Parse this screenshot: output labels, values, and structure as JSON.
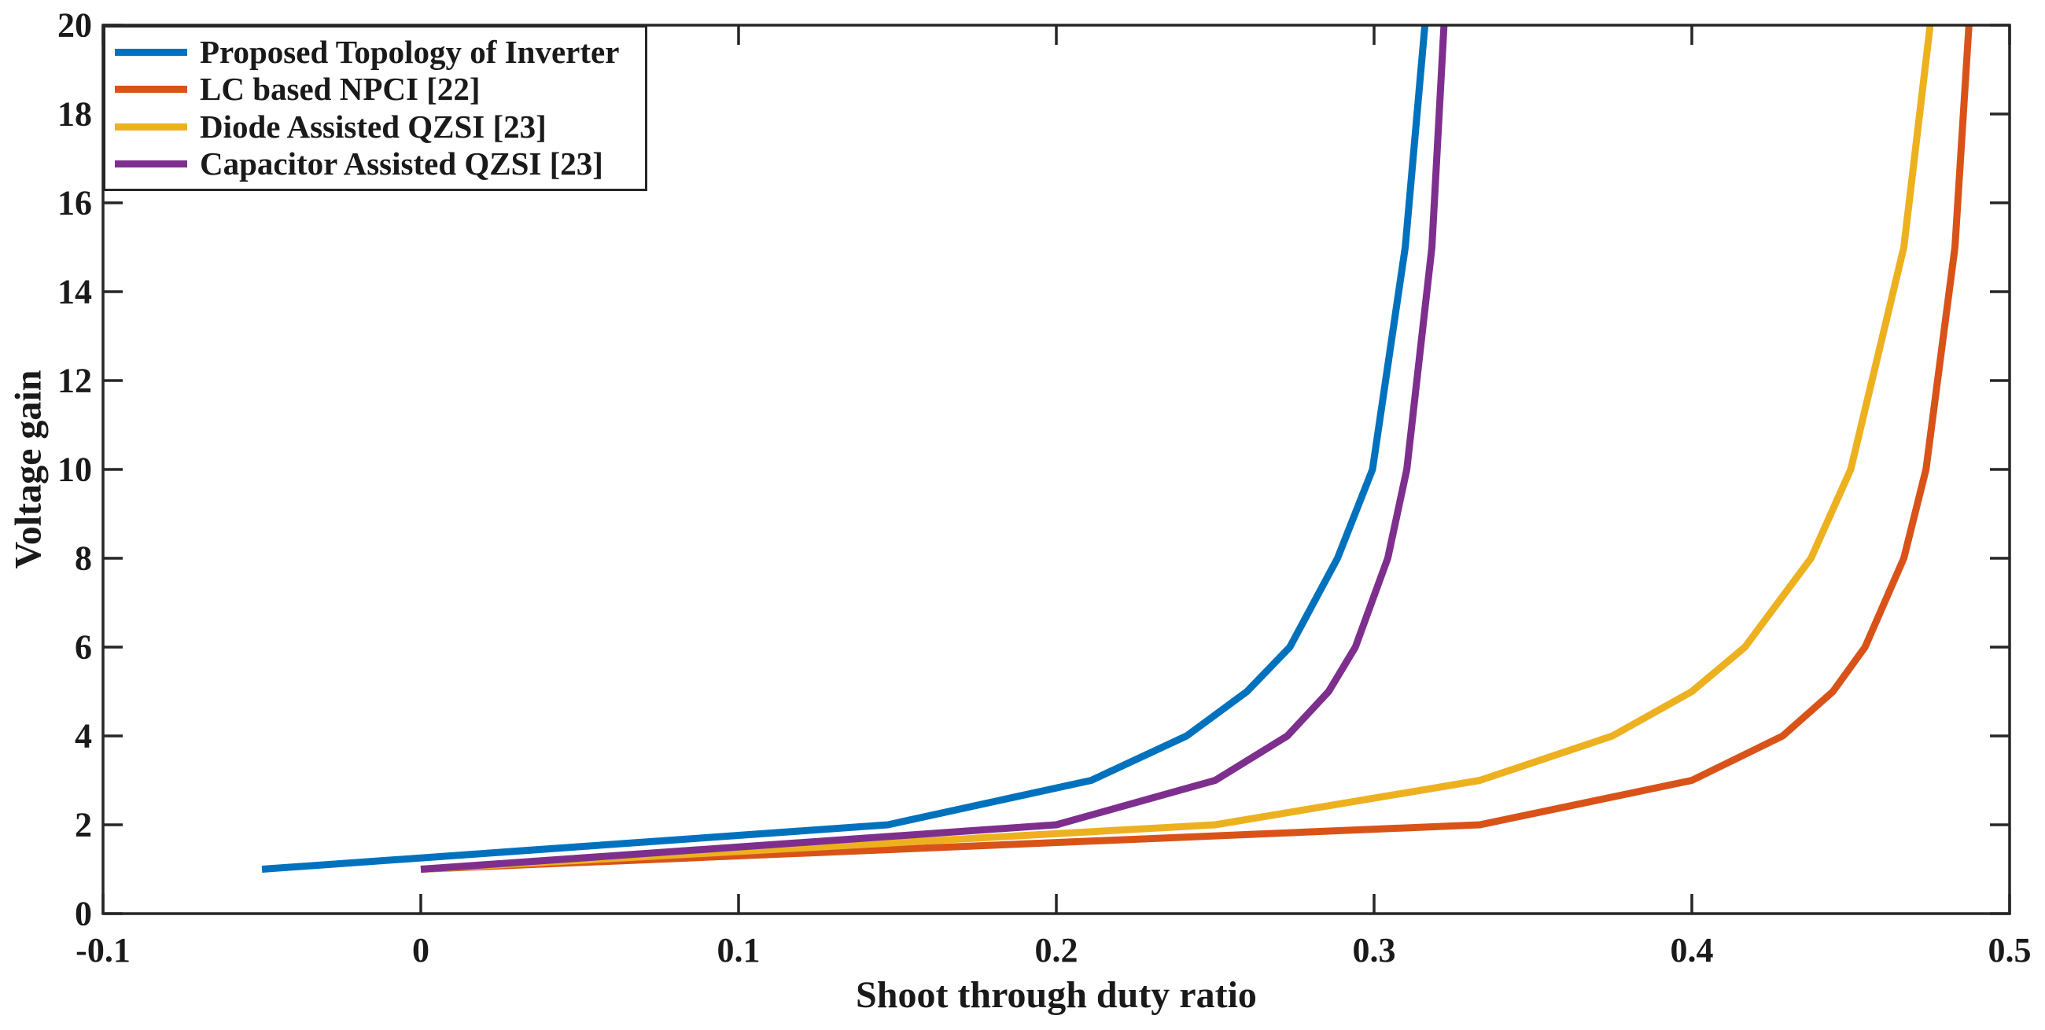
{
  "chart_data": {
    "type": "line",
    "title": "",
    "xlabel": "Shoot through duty ratio",
    "ylabel": "Voltage gain",
    "xlim": [
      -0.1,
      0.5
    ],
    "ylim": [
      0,
      20
    ],
    "xtick_labels": [
      "-0.1",
      "0",
      "0.1",
      "0.2",
      "0.3",
      "0.4",
      "0.5"
    ],
    "xtick_values": [
      -0.1,
      0,
      0.1,
      0.2,
      0.3,
      0.4,
      0.5
    ],
    "ytick_labels": [
      "0",
      "2",
      "4",
      "6",
      "8",
      "10",
      "12",
      "14",
      "16",
      "18",
      "20"
    ],
    "ytick_values": [
      0,
      2,
      4,
      6,
      8,
      10,
      12,
      14,
      16,
      18,
      20
    ],
    "grid": false,
    "legend_position": "top-left-inside",
    "axis_color": "#262626",
    "text_color": "#1a1a1a",
    "background": "#ffffff",
    "series": [
      {
        "name": "Proposed Topology of Inverter",
        "color": "#0072BD",
        "points": [
          [
            -0.05,
            1
          ],
          [
            0.147,
            2
          ],
          [
            0.211,
            3
          ],
          [
            0.241,
            4
          ],
          [
            0.26,
            5
          ],
          [
            0.2735,
            6
          ],
          [
            0.2885,
            8
          ],
          [
            0.2995,
            10
          ],
          [
            0.3098,
            15
          ],
          [
            0.316,
            20
          ]
        ]
      },
      {
        "name": "LC based NPCI [22]",
        "color": "#D95319",
        "points": [
          [
            0,
            1
          ],
          [
            0.3333,
            2
          ],
          [
            0.4,
            3
          ],
          [
            0.4286,
            4
          ],
          [
            0.4444,
            5
          ],
          [
            0.4545,
            6
          ],
          [
            0.4667,
            8
          ],
          [
            0.4737,
            10
          ],
          [
            0.4828,
            15
          ],
          [
            0.4872,
            20
          ]
        ]
      },
      {
        "name": "Diode Assisted QZSI [23]",
        "color": "#EDB120",
        "points": [
          [
            0,
            1
          ],
          [
            0.25,
            2
          ],
          [
            0.3333,
            3
          ],
          [
            0.375,
            4
          ],
          [
            0.4,
            5
          ],
          [
            0.4167,
            6
          ],
          [
            0.4375,
            8
          ],
          [
            0.45,
            10
          ],
          [
            0.4667,
            15
          ],
          [
            0.475,
            20
          ]
        ]
      },
      {
        "name": "Capacitor Assisted QZSI [23]",
        "color": "#7E2F8E",
        "points": [
          [
            0,
            1
          ],
          [
            0.2,
            2
          ],
          [
            0.25,
            3
          ],
          [
            0.2727,
            4
          ],
          [
            0.2857,
            5
          ],
          [
            0.2941,
            6
          ],
          [
            0.3043,
            8
          ],
          [
            0.3103,
            10
          ],
          [
            0.3182,
            15
          ],
          [
            0.322,
            20
          ]
        ]
      }
    ]
  }
}
